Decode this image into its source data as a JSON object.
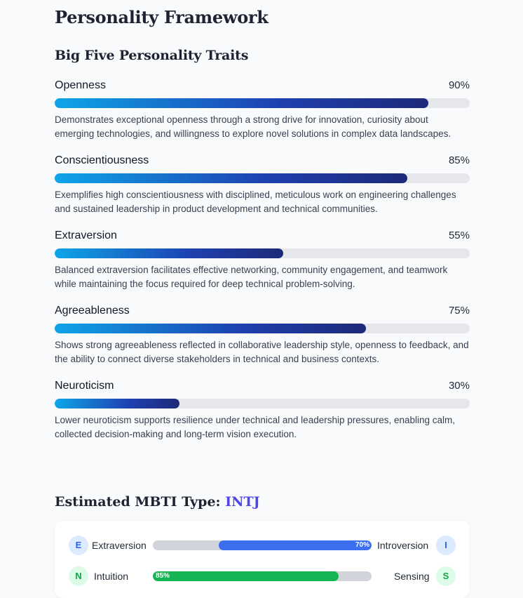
{
  "section_title": "Personality Framework",
  "big_five": {
    "title": "Big Five Personality Traits",
    "traits": [
      {
        "name": "Openness",
        "percent_label": "90%",
        "value": 90,
        "description": "Demonstrates exceptional openness through a strong drive for innovation, curiosity about emerging technologies, and willingness to explore novel solutions in complex data landscapes."
      },
      {
        "name": "Conscientiousness",
        "percent_label": "85%",
        "value": 85,
        "description": "Exemplifies high conscientiousness with disciplined, meticulous work on engineering challenges and sustained leadership in product development and technical communities."
      },
      {
        "name": "Extraversion",
        "percent_label": "55%",
        "value": 55,
        "description": "Balanced extraversion facilitates effective networking, community engagement, and teamwork while maintaining the focus required for deep technical problem-solving."
      },
      {
        "name": "Agreeableness",
        "percent_label": "75%",
        "value": 75,
        "description": "Shows strong agreeableness reflected in collaborative leadership style, openness to feedback, and the ability to connect diverse stakeholders in technical and business contexts."
      },
      {
        "name": "Neuroticism",
        "percent_label": "30%",
        "value": 30,
        "description": "Lower neuroticism supports resilience under technical and leadership pressures, enabling calm, collected decision-making and long-term vision execution."
      }
    ]
  },
  "mbti": {
    "title_prefix": "Estimated MBTI Type:",
    "type": "INTJ",
    "dimensions": [
      {
        "left_letter": "E",
        "left_label": "Extraversion",
        "right_letter": "I",
        "right_label": "Introversion",
        "percent_label": "70%",
        "value": 70,
        "fill_side": "right",
        "color": "#3b6ff0"
      },
      {
        "left_letter": "N",
        "left_label": "Intuition",
        "right_letter": "S",
        "right_label": "Sensing",
        "percent_label": "85%",
        "value": 85,
        "fill_side": "left",
        "color": "#16b553"
      }
    ]
  },
  "colors": {
    "bar_gradient": [
      "#0ea5e9",
      "#1e40af",
      "#1e2a78"
    ],
    "track": "#e5e7eb",
    "mbti_type": "#4f46e5",
    "letter_blue_bg": "#dbeafe",
    "letter_blue_fg": "#2563eb",
    "letter_green_bg": "#dcfce7",
    "letter_green_fg": "#16a34a"
  }
}
